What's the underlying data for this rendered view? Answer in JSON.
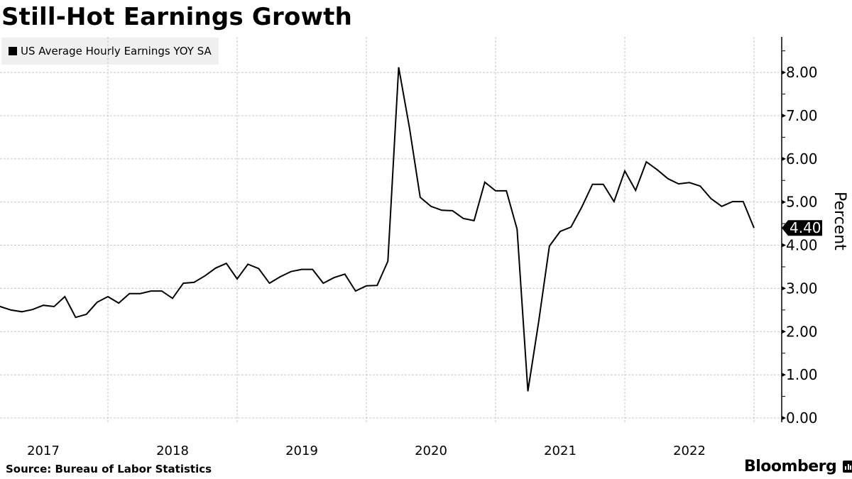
{
  "chart_data": {
    "type": "line",
    "title": "Still-Hot Earnings Growth",
    "ylabel": "Percent",
    "xlabel": "",
    "ylim": [
      0,
      8.6
    ],
    "yticks": [
      "0.00",
      "1.00",
      "2.00",
      "3.00",
      "4.00",
      "5.00",
      "6.00",
      "7.00",
      "8.00"
    ],
    "ytick_values": [
      0,
      1,
      2,
      3,
      4,
      5,
      6,
      7,
      8
    ],
    "xticks": [
      "2017",
      "2018",
      "2019",
      "2020",
      "2021",
      "2022"
    ],
    "x_start": "2017-02",
    "x_end": "2023-01",
    "frequency": "monthly",
    "grid": true,
    "legend_position": "top-left",
    "last_value_label": "4.40",
    "series": [
      {
        "name": "US Average Hourly Earnings YOY SA",
        "color": "#000000",
        "values": [
          2.69,
          2.58,
          2.5,
          2.46,
          2.51,
          2.61,
          2.58,
          2.81,
          2.33,
          2.4,
          2.68,
          2.81,
          2.66,
          2.88,
          2.88,
          2.94,
          2.94,
          2.77,
          3.12,
          3.14,
          3.29,
          3.47,
          3.58,
          3.22,
          3.56,
          3.46,
          3.12,
          3.27,
          3.39,
          3.44,
          3.44,
          3.12,
          3.25,
          3.33,
          2.94,
          3.06,
          3.07,
          3.63,
          8.12,
          6.72,
          5.11,
          4.9,
          4.81,
          4.8,
          4.62,
          4.57,
          5.46,
          5.26,
          5.26,
          4.37,
          0.62,
          2.23,
          3.98,
          4.32,
          4.42,
          4.88,
          5.41,
          5.41,
          5.01,
          5.72,
          5.27,
          5.93,
          5.75,
          5.54,
          5.42,
          5.45,
          5.37,
          5.08,
          4.9,
          5.01,
          5.01,
          4.4
        ]
      }
    ]
  },
  "source": "Source: Bureau of Labor Statistics",
  "brand": "Bloomberg",
  "colors": {
    "line": "#000000",
    "grid": "#c8c8c8",
    "legend_bg": "#f0f0f0"
  }
}
